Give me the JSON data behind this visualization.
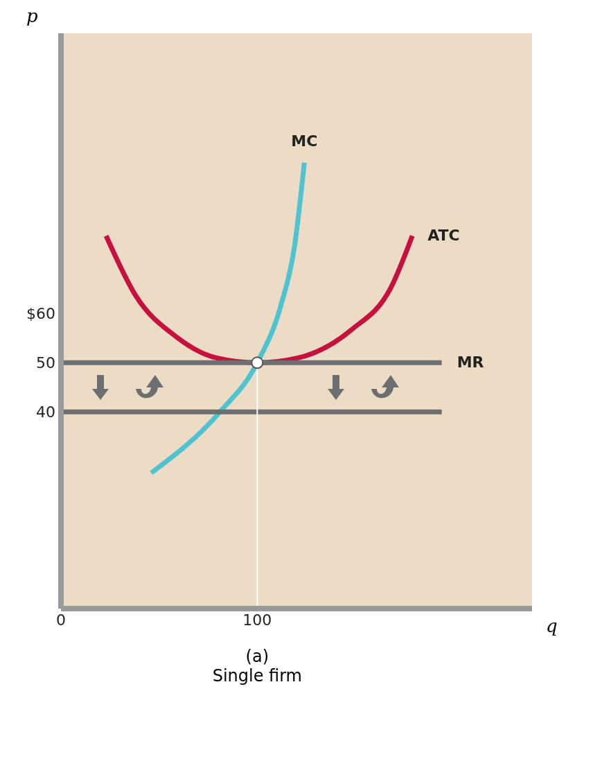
{
  "chart_data": {
    "type": "line",
    "title": "(a)",
    "subtitle": "Single firm",
    "xlabel": "q",
    "ylabel": "p",
    "xlim": [
      0,
      240
    ],
    "ylim": [
      0,
      117
    ],
    "xticks": [
      0,
      100
    ],
    "yticks": [
      40,
      50,
      {
        "value": 60,
        "label": "$60"
      }
    ],
    "grid": false,
    "legend": false,
    "marker": "none",
    "line_style": "solid",
    "series": [
      {
        "name": "MC",
        "color": "#4fc3cf",
        "x": [
          46,
          81,
          100,
          112,
          119,
          124
        ],
        "values": [
          27.6,
          40,
          50,
          61.6,
          73.7,
          90.7
        ]
      },
      {
        "name": "ATC",
        "color": "#c8103f",
        "x": [
          23,
          38,
          59,
          79,
          100,
          121,
          148,
          168,
          179
        ],
        "values": [
          75.8,
          63.7,
          55.2,
          51,
          50,
          51,
          56.7,
          65.2,
          75.8
        ]
      },
      {
        "name": "MR",
        "color": "#6d6e71",
        "x": [
          0,
          194
        ],
        "values": [
          50,
          50
        ]
      },
      {
        "color": "#6d6e71",
        "x": [
          0,
          194
        ],
        "values": [
          40,
          40
        ]
      },
      {
        "color": "#ffffff",
        "x": [
          100,
          100
        ],
        "values": [
          0,
          50
        ]
      },
      {
        "type": "scatter",
        "marker": "circle",
        "color": "#ffffff",
        "x": [
          100
        ],
        "values": [
          50
        ]
      }
    ]
  }
}
